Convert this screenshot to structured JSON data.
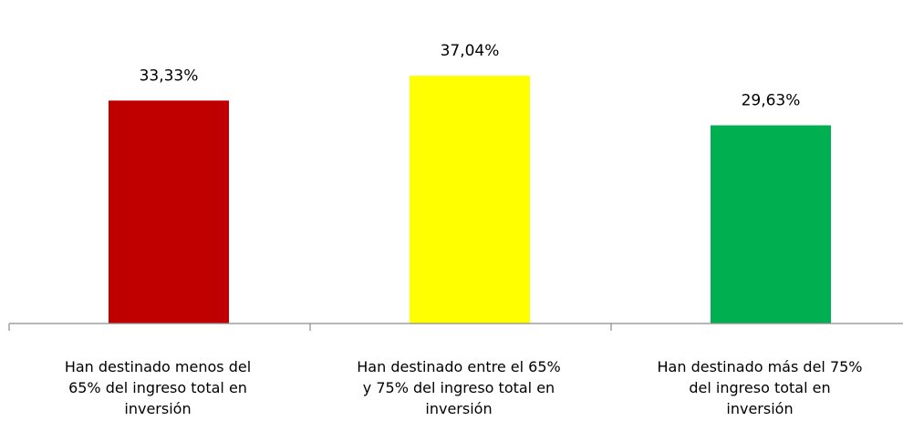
{
  "chart_data": {
    "type": "bar",
    "categories": [
      [
        "Han destinado menos del",
        "65% del ingreso total en",
        "inversión"
      ],
      [
        "Han destinado entre el 65%",
        "y 75% del ingreso total en",
        "inversión"
      ],
      [
        "Han destinado más del 75%",
        "del ingreso total en",
        "inversión"
      ]
    ],
    "values": [
      33.33,
      37.04,
      29.63
    ],
    "data_labels": [
      "33,33%",
      "37,04%",
      "29,63%"
    ],
    "colors": [
      "#c00000",
      "#ffff00",
      "#00b050"
    ],
    "ylim": [
      0,
      40
    ],
    "grid": false,
    "legend": "none",
    "title": "",
    "xlabel": "",
    "ylabel": ""
  }
}
